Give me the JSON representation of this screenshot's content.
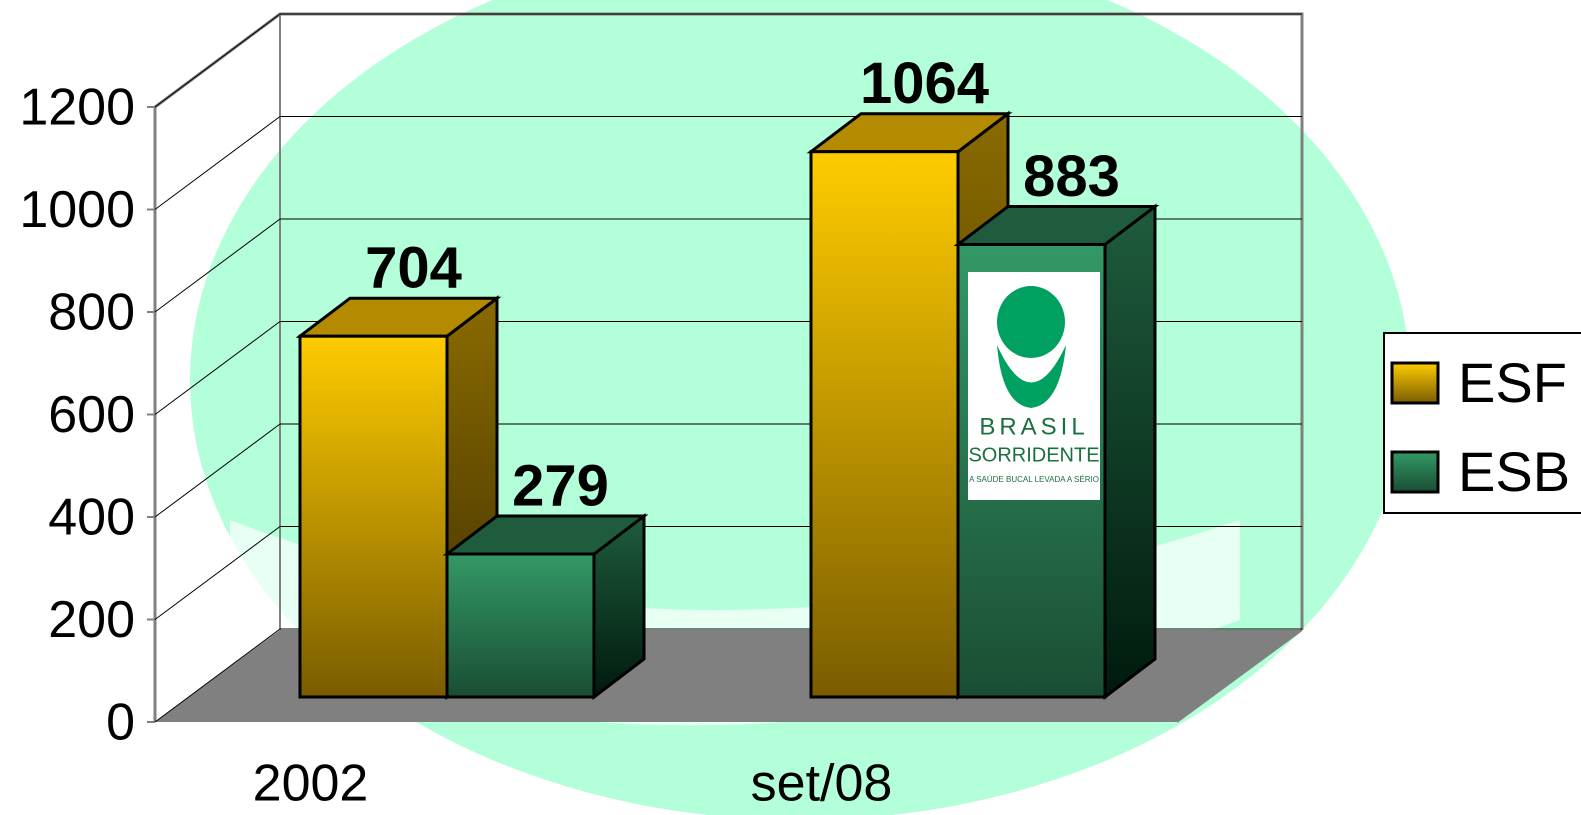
{
  "chart_data": {
    "type": "bar3d",
    "categories": [
      "2002",
      "set/08"
    ],
    "series": [
      {
        "name": "ESF",
        "color": "#ffcc00",
        "values": [
          704,
          1064
        ]
      },
      {
        "name": "ESB",
        "color": "#339966",
        "values": [
          279,
          883
        ]
      }
    ],
    "ylim": [
      0,
      1200
    ],
    "yticks": [
      0,
      200,
      400,
      600,
      800,
      1000,
      1200
    ],
    "grid": true,
    "legend": "right",
    "logo": {
      "line1": "BRASIL",
      "line2": "SORRIDENTE",
      "line3": "A SAÚDE BUCAL LEVADA A SÉRIO"
    }
  }
}
